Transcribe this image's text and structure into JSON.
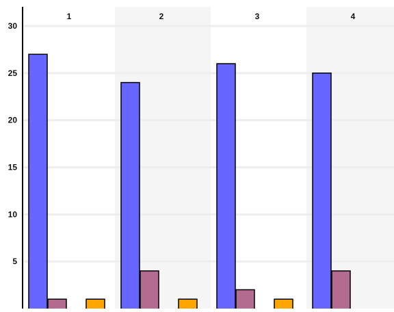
{
  "chart_data": {
    "type": "bar",
    "categories": [
      "1",
      "2",
      "3",
      "4"
    ],
    "series": [
      {
        "values": [
          27,
          24,
          26,
          25
        ],
        "color": "#6666ff"
      },
      {
        "values": [
          1,
          4,
          2,
          4
        ],
        "color": "#b36b8f"
      },
      {
        "values": [
          1,
          1,
          1,
          0
        ],
        "color": "#ffa500"
      }
    ],
    "y_ticks": [
      "5",
      "10",
      "15",
      "20",
      "25",
      "30"
    ],
    "ylim": [
      0,
      30
    ],
    "xlabel": "",
    "ylabel": "",
    "title": "",
    "grid": true,
    "category_labels_position": "top",
    "alternate_band_color": "#f5f5f5",
    "grid_color": "#eeeeee",
    "bar_outline_color": "#000000"
  }
}
